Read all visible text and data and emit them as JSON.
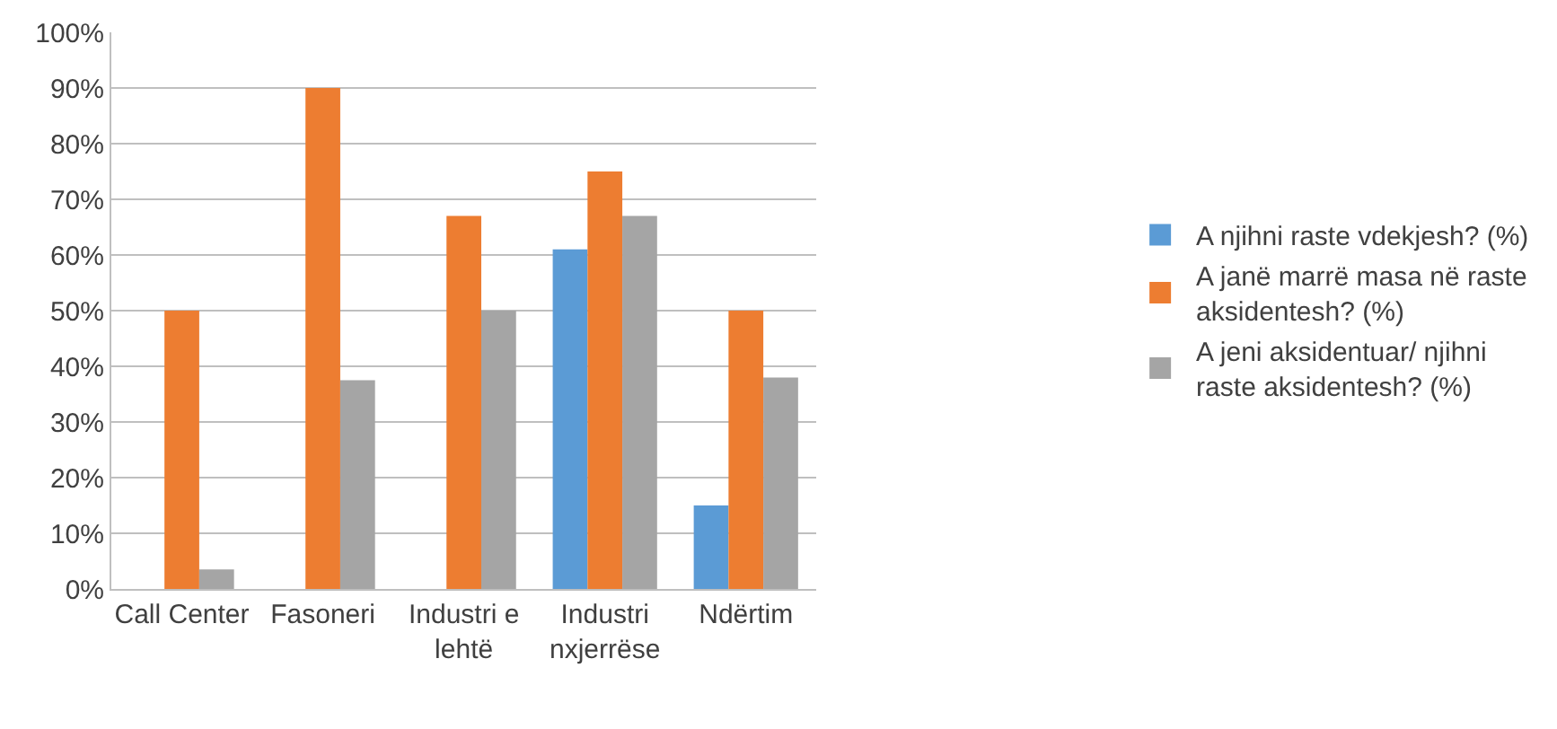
{
  "chart_data": {
    "type": "bar",
    "categories": [
      "Call Center",
      "Fasoneri",
      "Industri e\nlehtë",
      "Industri\nnxjerrëse",
      "Ndërtim"
    ],
    "series": [
      {
        "name": "A njihni raste vdekjesh? (%)",
        "color": "#5b9bd5",
        "values": [
          0,
          0,
          0,
          61,
          15
        ]
      },
      {
        "name": "A janë marrë masa në raste aksidentesh? (%)",
        "color": "#ed7d31",
        "values": [
          50,
          90,
          67,
          75,
          50
        ]
      },
      {
        "name": "A jeni aksidentuar/ njihni raste aksidentesh? (%)",
        "color": "#a5a5a5",
        "values": [
          3.5,
          37.5,
          50,
          67,
          38
        ]
      }
    ],
    "ylim": [
      0,
      100
    ],
    "yticks": [
      {
        "value": 0,
        "label": "0%"
      },
      {
        "value": 10,
        "label": "10%"
      },
      {
        "value": 20,
        "label": "20%"
      },
      {
        "value": 30,
        "label": "30%"
      },
      {
        "value": 40,
        "label": "40%"
      },
      {
        "value": 50,
        "label": "50%"
      },
      {
        "value": 60,
        "label": "60%"
      },
      {
        "value": 70,
        "label": "70%"
      },
      {
        "value": 80,
        "label": "80%"
      },
      {
        "value": 90,
        "label": "90%"
      },
      {
        "value": 100,
        "label": "100%"
      }
    ],
    "grid": "y",
    "legend": "right"
  }
}
